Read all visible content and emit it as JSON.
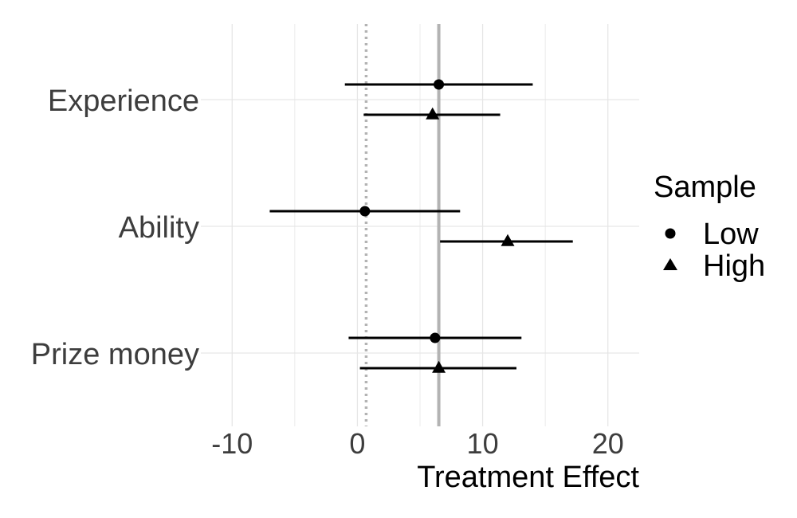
{
  "chart_data": {
    "type": "coefficient-plot",
    "title": "",
    "xlabel": "Treatment Effect",
    "ylabel": "",
    "xlim": [
      -12.5,
      22.5
    ],
    "xticks": [
      -10,
      0,
      10,
      20
    ],
    "xtick_labels": [
      "-10",
      "0",
      "10",
      "20"
    ],
    "categories": [
      "Experience",
      "Ability",
      "Prize money"
    ],
    "reference_lines": {
      "zero_dotted": 0.7,
      "overall_solid": 6.5
    },
    "legend": {
      "title": "Sample",
      "placement": "right",
      "entries": [
        {
          "name": "Low",
          "marker": "circle"
        },
        {
          "name": "High",
          "marker": "triangle"
        }
      ]
    },
    "series": [
      {
        "name": "Low",
        "marker": "circle",
        "points": [
          {
            "category": "Experience",
            "estimate": 6.5,
            "low": -1.0,
            "high": 14.0
          },
          {
            "category": "Ability",
            "estimate": 0.6,
            "low": -7.0,
            "high": 8.2
          },
          {
            "category": "Prize money",
            "estimate": 6.2,
            "low": -0.7,
            "high": 13.1
          }
        ]
      },
      {
        "name": "High",
        "marker": "triangle",
        "points": [
          {
            "category": "Experience",
            "estimate": 6.0,
            "low": 0.5,
            "high": 11.4
          },
          {
            "category": "Ability",
            "estimate": 12.0,
            "low": 6.6,
            "high": 17.2
          },
          {
            "category": "Prize money",
            "estimate": 6.5,
            "low": 0.2,
            "high": 12.7
          }
        ]
      }
    ],
    "colors": {
      "marks": "#000000",
      "grid": "#e6e6e6",
      "zero_line": "#b3b3b3",
      "overall_line": "#b3b3b3",
      "text": "#3d3d3d"
    }
  }
}
